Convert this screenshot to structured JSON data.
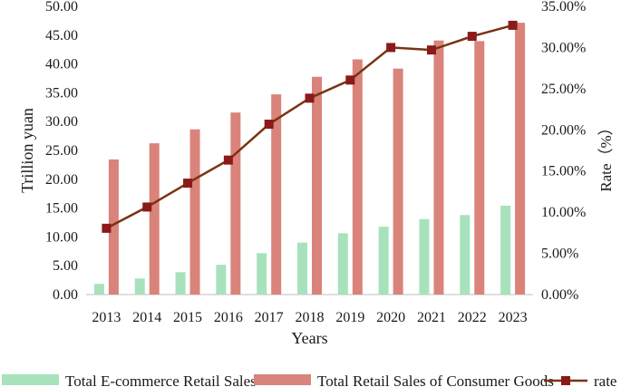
{
  "chart_data": {
    "type": "bar",
    "categories": [
      "2013",
      "2014",
      "2015",
      "2016",
      "2017",
      "2018",
      "2019",
      "2020",
      "2021",
      "2022",
      "2023"
    ],
    "series": [
      {
        "name": "Total E-commerce Retail Sales",
        "type": "bar",
        "axis": "left",
        "color": "#a8e2bc",
        "values": [
          1.85,
          2.79,
          3.88,
          5.16,
          7.18,
          9.01,
          10.63,
          11.76,
          13.09,
          13.79,
          15.42
        ]
      },
      {
        "name": "Total Retail Sales of Consumer Goods",
        "type": "bar",
        "axis": "left",
        "color": "#d9837b",
        "values": [
          23.44,
          26.24,
          28.66,
          31.58,
          34.73,
          37.78,
          40.8,
          39.2,
          44.08,
          43.97,
          47.15
        ]
      },
      {
        "name": "rate",
        "type": "line",
        "axis": "right",
        "color": "#7a3312",
        "marker_color": "#8b1a1a",
        "values": [
          8.05,
          10.63,
          13.53,
          16.33,
          20.69,
          23.85,
          26.05,
          30.0,
          29.7,
          31.36,
          32.7
        ]
      }
    ],
    "y_left": {
      "label": "Trillion yuan",
      "min": 0,
      "max": 50,
      "step": 5,
      "ticks": [
        "0.00",
        "5.00",
        "10.00",
        "15.00",
        "20.00",
        "25.00",
        "30.00",
        "35.00",
        "40.00",
        "45.00",
        "50.00"
      ]
    },
    "y_right": {
      "label": "Rate（%）",
      "min": 0,
      "max": 35,
      "step": 5,
      "ticks": [
        "0.00%",
        "5.00%",
        "10.00%",
        "15.00%",
        "20.00%",
        "25.00%",
        "30.00%",
        "35.00%"
      ]
    },
    "xlabel": "Years",
    "legend_position": "bottom",
    "legend": [
      "Total E-commerce Retail Sales",
      "Total Retail Sales of Consumer Goods",
      "rate"
    ]
  }
}
